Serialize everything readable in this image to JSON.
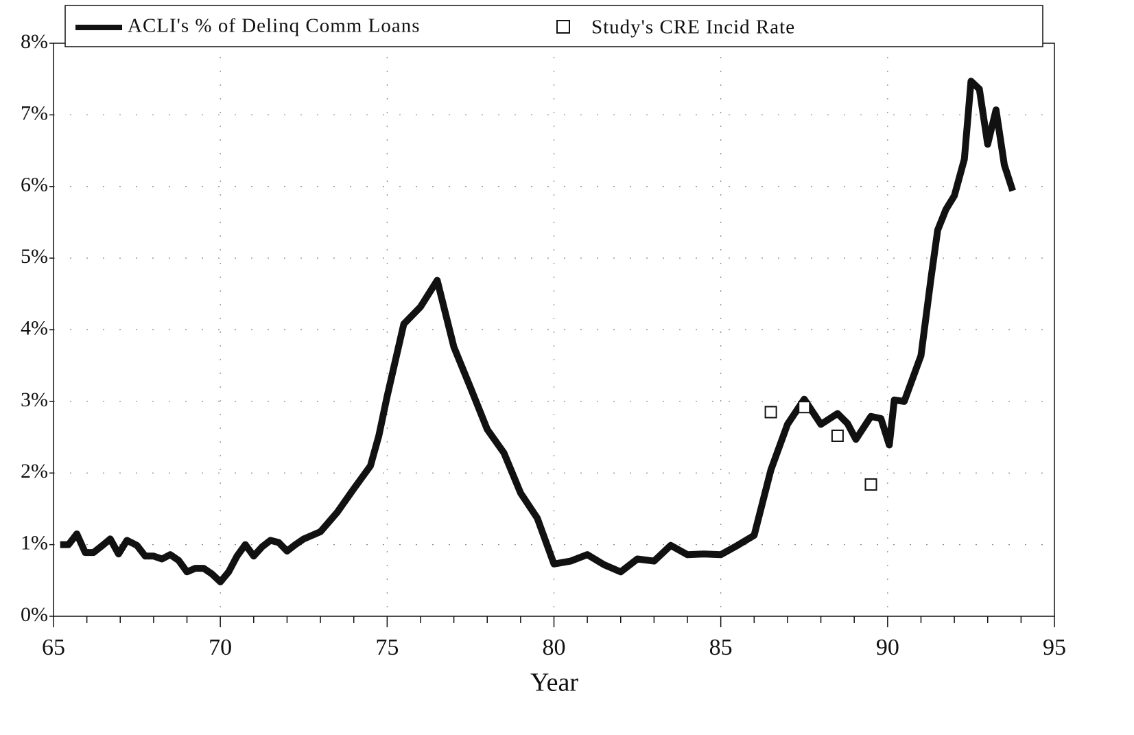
{
  "chart_data": {
    "type": "line",
    "x_label": "Year",
    "xlim": [
      65,
      95
    ],
    "xticks": [
      65,
      70,
      75,
      80,
      85,
      90,
      95
    ],
    "xminorticks": [
      66,
      67,
      68,
      69,
      71,
      72,
      73,
      74,
      76,
      77,
      78,
      79,
      81,
      82,
      83,
      84,
      86,
      87,
      88,
      89,
      91,
      92,
      93,
      94
    ],
    "ylim": [
      0,
      8
    ],
    "yticks": [
      {
        "value": 0,
        "label": "0%"
      },
      {
        "value": 1,
        "label": "1%"
      },
      {
        "value": 2,
        "label": "2%"
      },
      {
        "value": 3,
        "label": "3%"
      },
      {
        "value": 4,
        "label": "4%"
      },
      {
        "value": 5,
        "label": "5%"
      },
      {
        "value": 6,
        "label": "6%"
      },
      {
        "value": 7,
        "label": "7%"
      },
      {
        "value": 8,
        "label": "8%"
      }
    ],
    "grid": true,
    "legend": "top",
    "series": [
      {
        "name": "ACLI's % of Delinq Comm Loans",
        "color": "#111111",
        "mark": "line",
        "x": [
          65.2,
          65.45,
          65.7,
          65.95,
          66.2,
          66.5,
          66.7,
          66.95,
          67.2,
          67.5,
          67.75,
          68.0,
          68.25,
          68.5,
          68.75,
          69.0,
          69.25,
          69.5,
          69.75,
          70.0,
          70.25,
          70.5,
          70.75,
          71.0,
          71.25,
          71.5,
          71.75,
          72.0,
          72.25,
          72.5,
          73.0,
          73.5,
          74.0,
          74.5,
          74.75,
          75.0,
          75.5,
          76.0,
          76.5,
          77.0,
          77.5,
          78.0,
          78.5,
          79.0,
          79.5,
          80.0,
          80.5,
          81.0,
          81.5,
          82.0,
          82.5,
          83.0,
          83.5,
          84.0,
          84.5,
          85.0,
          85.5,
          86.0,
          86.5,
          87.0,
          87.5,
          88.0,
          88.5,
          88.8,
          89.05,
          89.5,
          89.8,
          90.05,
          90.2,
          90.5,
          91.0,
          91.3,
          91.5,
          91.75,
          92.0,
          92.3,
          92.5,
          92.75,
          93.0,
          93.25,
          93.5,
          93.75
        ],
        "values": [
          1.0,
          1.0,
          1.15,
          0.89,
          0.89,
          1.0,
          1.08,
          0.87,
          1.06,
          0.99,
          0.84,
          0.84,
          0.8,
          0.86,
          0.78,
          0.62,
          0.67,
          0.67,
          0.59,
          0.48,
          0.62,
          0.84,
          1.0,
          0.84,
          0.97,
          1.06,
          1.03,
          0.91,
          1.0,
          1.08,
          1.18,
          1.45,
          1.78,
          2.1,
          2.52,
          3.07,
          4.08,
          4.32,
          4.69,
          3.76,
          3.19,
          2.61,
          2.28,
          1.72,
          1.37,
          0.73,
          0.77,
          0.86,
          0.72,
          0.62,
          0.8,
          0.77,
          0.99,
          0.86,
          0.87,
          0.86,
          0.99,
          1.13,
          2.04,
          2.68,
          3.03,
          2.68,
          2.83,
          2.69,
          2.47,
          2.79,
          2.76,
          2.39,
          3.02,
          3.0,
          3.64,
          4.72,
          5.39,
          5.68,
          5.87,
          6.38,
          7.47,
          7.36,
          6.59,
          7.07,
          6.3,
          5.94
        ]
      },
      {
        "name": "Study's CRE Incid Rate",
        "color": "#111111",
        "mark": "square",
        "x": [
          86.5,
          87.5,
          88.5,
          89.5
        ],
        "values": [
          2.85,
          2.92,
          2.52,
          1.84
        ]
      }
    ]
  }
}
